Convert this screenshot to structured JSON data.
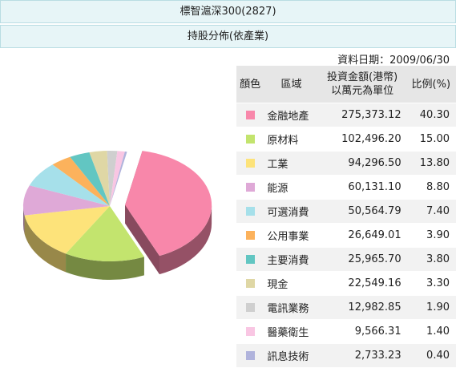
{
  "header": {
    "title": "標智滬深300(2827)",
    "subtitle": "持股分佈(依產業)"
  },
  "date_label": "資料日期：2009/06/30",
  "table": {
    "headers": [
      "顏色",
      "區域",
      "投資金額(港幣)\n以萬元為單位",
      "比例(%)"
    ]
  },
  "chart_data": {
    "type": "pie",
    "title": "持股分佈(依產業)",
    "categories": [
      "金融地產",
      "原材料",
      "工業",
      "能源",
      "可選消費",
      "公用事業",
      "主要消費",
      "現金",
      "電訊業務",
      "醫藥衛生",
      "訊息技術"
    ],
    "amounts": [
      "275,373.12",
      "102,496.20",
      "94,296.50",
      "60,131.10",
      "50,564.79",
      "26,649.01",
      "25,965.70",
      "22,549.16",
      "12,982.85",
      "9,566.31",
      "2,733.23"
    ],
    "percent_labels": [
      "40.30",
      "15.00",
      "13.80",
      "8.80",
      "7.40",
      "3.90",
      "3.80",
      "3.30",
      "1.90",
      "1.40",
      "0.40"
    ],
    "values": [
      40.3,
      15.0,
      13.8,
      8.8,
      7.4,
      3.9,
      3.8,
      3.3,
      1.9,
      1.4,
      0.4
    ],
    "colors": [
      "#f887aa",
      "#c3e46e",
      "#fde37a",
      "#dfa9d7",
      "#a6e0ea",
      "#fcb25c",
      "#62c6c2",
      "#dfd7a5",
      "#cfcfcf",
      "#f9c6e3",
      "#b0b3dc"
    ]
  }
}
